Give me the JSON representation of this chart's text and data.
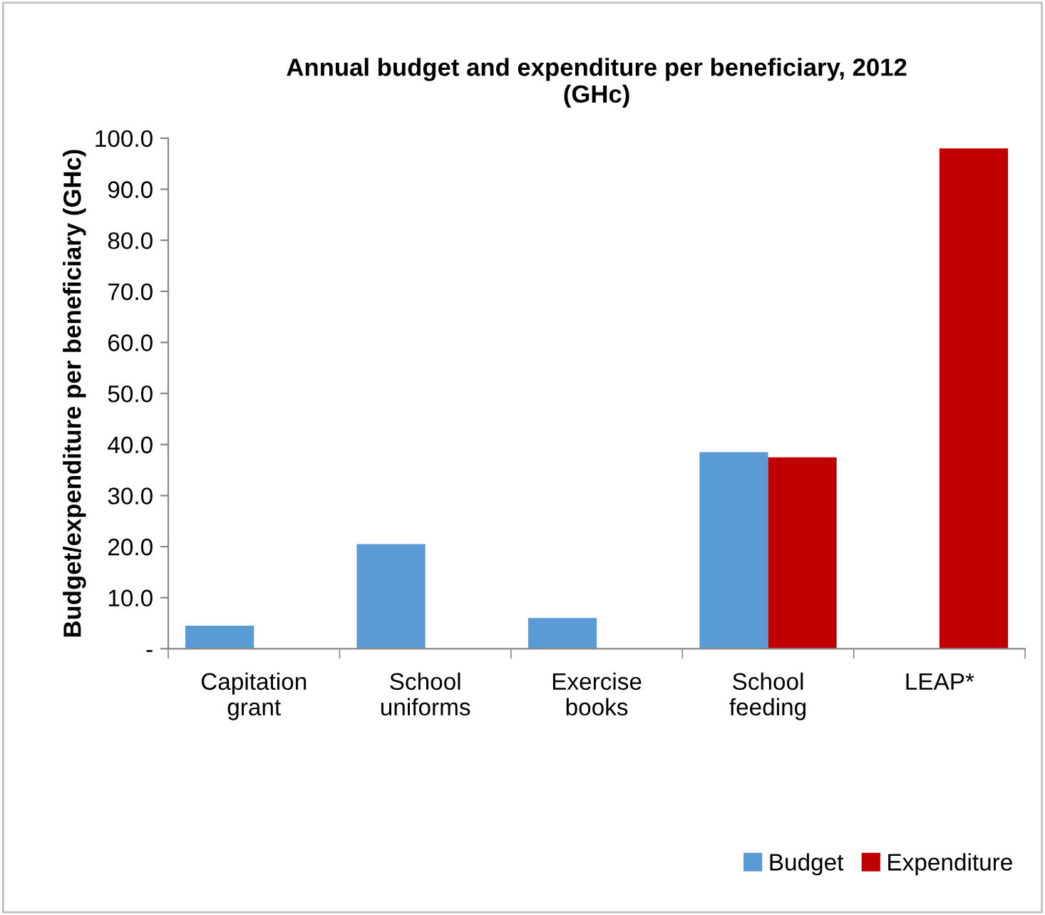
{
  "chart_data": {
    "type": "bar",
    "title": "Annual budget and expenditure per beneficiary, 2012\n(GHc)",
    "ylabel": "Budget/expenditure per beneficiary (GHc)",
    "categories": [
      "Capitation\ngrant",
      "School\nuniforms",
      "Exercise\nbooks",
      "School\nfeeding",
      "LEAP*"
    ],
    "series": [
      {
        "name": "Budget",
        "color": "#5b9bd5",
        "values": [
          4.5,
          20.5,
          6.0,
          38.5,
          null
        ]
      },
      {
        "name": "Expenditure",
        "color": "#c00000",
        "values": [
          null,
          null,
          null,
          37.5,
          98.0
        ]
      }
    ],
    "ylim": [
      0,
      100
    ],
    "yticks": [
      {
        "value": 0,
        "label": "-"
      },
      {
        "value": 10,
        "label": "10.0"
      },
      {
        "value": 20,
        "label": "20.0"
      },
      {
        "value": 30,
        "label": "30.0"
      },
      {
        "value": 40,
        "label": "40.0"
      },
      {
        "value": 50,
        "label": "50.0"
      },
      {
        "value": 60,
        "label": "60.0"
      },
      {
        "value": 70,
        "label": "70.0"
      },
      {
        "value": 80,
        "label": "80.0"
      },
      {
        "value": 90,
        "label": "90.0"
      },
      {
        "value": 100,
        "label": "100.0"
      }
    ],
    "grid": false,
    "legend": "bottom right"
  }
}
